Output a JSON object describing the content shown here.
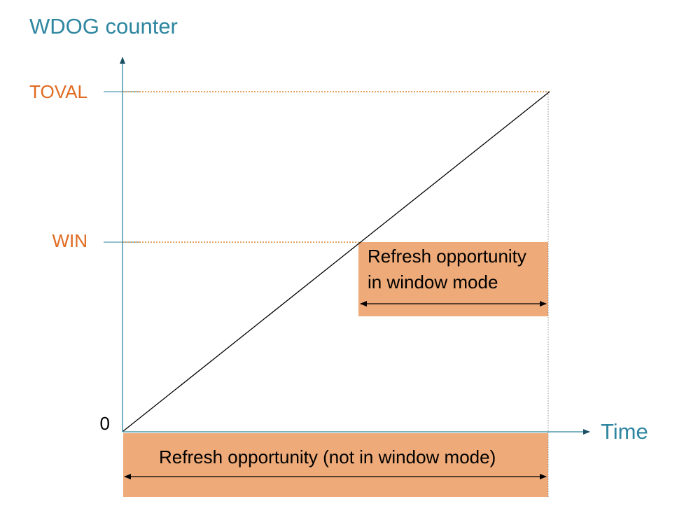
{
  "y_axis_title": "WDOG counter",
  "x_axis_title": "Time",
  "levels": {
    "toval": "TOVAL",
    "win": "WIN",
    "zero": "0"
  },
  "window_box": {
    "line1": "Refresh opportunity",
    "line2": "in window mode"
  },
  "bottom_box": {
    "label": "Refresh opportunity (not in window mode)"
  },
  "colors": {
    "axis": "#2e86a0",
    "axis_title": "#2e86a0",
    "level_label": "#e06a20",
    "dotted_guide": "#d8832e",
    "box_fill": "#eeaa78",
    "ramp_line": "#000000"
  }
}
